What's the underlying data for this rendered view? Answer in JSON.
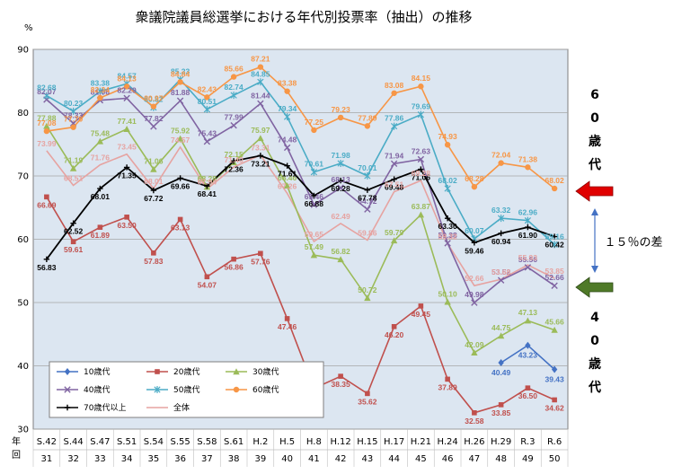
{
  "chart_data": {
    "type": "line",
    "title": "衆議院議員総選挙における年代別投票率（抽出）の推移",
    "ylabel": "%",
    "ylim": [
      30,
      90
    ],
    "yticks": [
      30,
      40,
      50,
      60,
      70,
      80,
      90
    ],
    "grid": true,
    "legend_position": "bottom-left",
    "x_row_label_1": "年",
    "x_row_label_2": "回",
    "categories": [
      "S.42",
      "S.44",
      "S.47",
      "S.51",
      "S.54",
      "S.55",
      "S.58",
      "S.61",
      "H.2",
      "H.5",
      "H.8",
      "H.12",
      "H.15",
      "H.17",
      "H.21",
      "H.24",
      "H.26",
      "H.29",
      "R.3",
      "R.6"
    ],
    "sessions": [
      "31",
      "32",
      "33",
      "34",
      "35",
      "36",
      "37",
      "38",
      "39",
      "40",
      "41",
      "42",
      "43",
      "44",
      "45",
      "46",
      "47",
      "48",
      "49",
      "50"
    ],
    "series": [
      {
        "name": "10歳代",
        "color": "#4472C4",
        "marker": "diamond",
        "values": [
          null,
          null,
          null,
          null,
          null,
          null,
          null,
          null,
          null,
          null,
          null,
          null,
          null,
          null,
          null,
          null,
          null,
          40.49,
          43.23,
          39.43
        ],
        "labels": [
          "",
          "",
          "",
          "",
          "",
          "",
          "",
          "",
          "",
          "",
          "",
          "",
          "",
          "",
          "",
          "",
          "",
          "40.49",
          "43.23",
          "39.43"
        ]
      },
      {
        "name": "20歳代",
        "color": "#C0504D",
        "marker": "square",
        "values": [
          66.69,
          59.61,
          61.89,
          63.5,
          57.83,
          63.13,
          54.07,
          56.86,
          57.76,
          47.46,
          36.42,
          38.35,
          35.62,
          46.2,
          49.45,
          37.89,
          32.58,
          33.85,
          36.5,
          34.62
        ],
        "labels": [
          "66.69",
          "59.61",
          "61.89",
          "63.50",
          "57.83",
          "63.13",
          "54.07",
          "56.86",
          "57.76",
          "47.46",
          "36.42",
          "38.35",
          "35.62",
          "46.20",
          "49.45",
          "37.89",
          "32.58",
          "33.85",
          "36.50",
          "34.62"
        ]
      },
      {
        "name": "30歳代",
        "color": "#9BBB59",
        "marker": "triangle",
        "values": [
          77.88,
          71.19,
          75.48,
          77.41,
          71.06,
          75.92,
          68.28,
          72.15,
          75.97,
          68.46,
          57.49,
          56.82,
          50.72,
          59.79,
          63.87,
          50.1,
          42.09,
          44.75,
          47.13,
          45.66
        ],
        "labels": [
          "77.88",
          "71.19",
          "75.48",
          "77.41",
          "71.06",
          "75.92",
          "68.28",
          "72.15",
          "75.97",
          "68.46",
          "57.49",
          "56.82",
          "50.72",
          "59.79",
          "63.87",
          "50.10",
          "42.09",
          "44.75",
          "47.13",
          "45.66"
        ]
      },
      {
        "name": "40歳代",
        "color": "#8064A2",
        "marker": "x",
        "values": [
          82.07,
          78.33,
          81.96,
          82.29,
          77.82,
          81.88,
          75.43,
          77.99,
          81.44,
          74.48,
          65.46,
          68.13,
          64.72,
          71.94,
          72.63,
          59.38,
          49.98,
          53.52,
          55.56,
          52.66
        ],
        "labels": [
          "82.07",
          "78.33",
          "81.96",
          "82.29",
          "77.82",
          "81.88",
          "75.43",
          "77.99",
          "81.44",
          "74.48",
          "65.46",
          "68.13",
          "64.72",
          "71.94",
          "72.63",
          "59.38",
          "49.98",
          "53.52",
          "55.56",
          "52.66"
        ]
      },
      {
        "name": "50歳代",
        "color": "#4BACC6",
        "marker": "star",
        "values": [
          82.68,
          80.23,
          83.38,
          84.57,
          80.82,
          85.23,
          80.51,
          82.74,
          84.85,
          79.34,
          70.61,
          71.98,
          70.01,
          77.86,
          79.69,
          68.02,
          60.07,
          63.32,
          62.96,
          59.16
        ],
        "labels": [
          "82.68",
          "80.23",
          "83.38",
          "84.57",
          "80.82",
          "85.23",
          "80.51",
          "82.74",
          "84.85",
          "79.34",
          "70.61",
          "71.98",
          "70.01",
          "77.86",
          "79.69",
          "68.02",
          "60.07",
          "63.32",
          "62.96",
          "59.16"
        ]
      },
      {
        "name": "60歳代",
        "color": "#F79646",
        "marker": "circle",
        "values": [
          77.08,
          77.7,
          82.34,
          84.13,
          80.97,
          84.84,
          82.43,
          85.66,
          87.21,
          83.38,
          77.25,
          79.23,
          77.89,
          83.08,
          84.15,
          74.93,
          68.28,
          72.04,
          71.38,
          68.02
        ],
        "labels": [
          "77.08",
          "77.70",
          "82.34",
          "84.13",
          "80.97",
          "84.84",
          "82.43",
          "85.66",
          "87.21",
          "83.38",
          "77.25",
          "79.23",
          "77.89",
          "83.08",
          "84.15",
          "74.93",
          "68.28",
          "72.04",
          "71.38",
          "68.02"
        ]
      },
      {
        "name": "70歳代以上",
        "color": "#000000",
        "marker": "plus",
        "values": [
          56.83,
          62.52,
          68.01,
          71.35,
          67.72,
          69.66,
          68.41,
          72.36,
          73.21,
          71.61,
          66.88,
          69.28,
          67.78,
          69.48,
          71.06,
          63.3,
          59.46,
          60.94,
          61.9,
          60.42
        ],
        "labels": [
          "56.83",
          "62.52",
          "68.01",
          "71.35",
          "67.72",
          "69.66",
          "68.41",
          "72.36",
          "73.21",
          "71.61",
          "66.88",
          "69.28",
          "67.78",
          "69.48",
          "71.06",
          "63.30",
          "59.46",
          "60.94",
          "61.90",
          "60.42"
        ]
      },
      {
        "name": "全体",
        "color": "#E6A3A1",
        "marker": "none",
        "values": [
          73.99,
          68.51,
          71.76,
          73.45,
          68.01,
          74.57,
          67.94,
          71.4,
          73.31,
          67.26,
          59.65,
          62.49,
          59.86,
          67.51,
          69.28,
          59.32,
          52.66,
          53.68,
          55.93,
          53.85
        ],
        "labels": [
          "73.99",
          "68.51",
          "71.76",
          "73.45",
          "68.01",
          "74.57",
          "67.94",
          "71.40",
          "73.31",
          "67.26",
          "59.65",
          "62.49",
          "59.86",
          "67.51",
          "69.28",
          "59.32",
          "52.66",
          "53.68",
          "55.93",
          "53.85"
        ]
      }
    ],
    "side_top_text": [
      "6",
      "0",
      "歳",
      "代"
    ],
    "side_bottom_text": [
      "4",
      "0",
      "歳",
      "代"
    ],
    "gap_text": "１５％の差",
    "arrow_top_color": "#E00000",
    "arrow_bottom_color": "#4F7A28"
  }
}
